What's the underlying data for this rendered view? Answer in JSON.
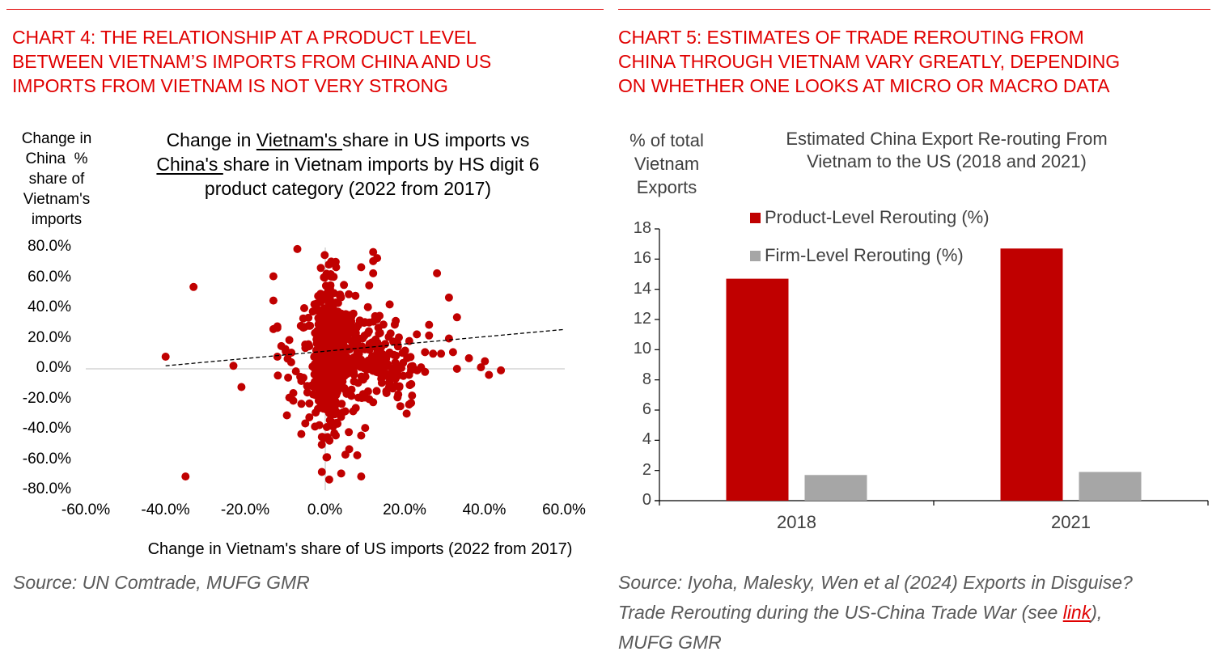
{
  "left_panel": {
    "heading_lines": [
      "CHART 4: THE RELATIONSHIP AT A PRODUCT LEVEL",
      "BETWEEN VIETNAM’S IMPORTS FROM CHINA AND US",
      "IMPORTS FROM VIETNAM IS NOT VERY STRONG"
    ],
    "source": "Source: UN Comtrade, MUFG GMR"
  },
  "right_panel": {
    "heading_lines": [
      "CHART 5: ESTIMATES OF TRADE REROUTING FROM",
      "CHINA THROUGH VIETNAM VARY GREATLY, DEPENDING",
      "ON WHETHER ONE LOOKS AT MICRO OR MACRO DATA"
    ],
    "source_lines": [
      "Source: Iyoha, Malesky, Wen et al (2024) Exports in Disguise?",
      "Trade Rerouting during the US-China Trade War (see ",
      "link",
      "),",
      "MUFG GMR"
    ]
  },
  "colors": {
    "accent_red": "#e00000",
    "series_red": "#c00000",
    "series_grey": "#a6a6a6",
    "trend": "#000000",
    "axis_grey": "#bfbfbf"
  },
  "chart_data": [
    {
      "type": "scatter",
      "title_parts": [
        "Change in ",
        "Vietnam's ",
        "share in US imports vs",
        "China's ",
        "share in Vietnam imports by HS digit 6",
        "product category (2022 from 2017)"
      ],
      "ylabel_lines": [
        "Change in",
        "China  %",
        "share of",
        "Vietnam's",
        "imports"
      ],
      "xlabel": "Change in Vietnam's share of US imports (2022 from 2017)",
      "xlim": [
        -0.6,
        0.6
      ],
      "ylim": [
        -0.8,
        0.8
      ],
      "x_ticks": [
        "-60.0%",
        "-40.0%",
        "-20.0%",
        "0.0%",
        "20.0%",
        "40.0%",
        "60.0%"
      ],
      "y_ticks": [
        "80.0%",
        "60.0%",
        "40.0%",
        "20.0%",
        "0.0%",
        "-20.0%",
        "-40.0%",
        "-60.0%",
        "-80.0%"
      ],
      "trendline": {
        "style": "dashed",
        "from": [
          -0.4,
          0.02
        ],
        "to": [
          0.6,
          0.26
        ]
      },
      "outliers": [
        [
          -0.4,
          0.08
        ],
        [
          -0.33,
          0.54
        ],
        [
          -0.35,
          -0.71
        ],
        [
          -0.23,
          0.02
        ],
        [
          -0.21,
          -0.12
        ],
        [
          -0.13,
          0.61
        ],
        [
          -0.13,
          0.45
        ],
        [
          -0.12,
          0.28
        ],
        [
          -0.12,
          0.27
        ],
        [
          -0.11,
          0.15
        ],
        [
          -0.12,
          0.08
        ],
        [
          -0.07,
          0.79
        ],
        [
          -0.09,
          0.19
        ],
        [
          -0.1,
          0.13
        ],
        [
          -0.09,
          -0.19
        ],
        [
          -0.08,
          -0.21
        ],
        [
          -0.06,
          -0.43
        ],
        [
          -0.05,
          -0.36
        ],
        [
          -0.06,
          -0.08
        ],
        [
          -0.08,
          -0.16
        ],
        [
          0.12,
          0.77
        ],
        [
          0.12,
          0.71
        ],
        [
          0.13,
          0.73
        ],
        [
          0.12,
          0.63
        ],
        [
          0.11,
          0.55
        ],
        [
          0.09,
          0.67
        ],
        [
          0.28,
          0.63
        ],
        [
          0.31,
          0.47
        ],
        [
          0.33,
          0.34
        ],
        [
          0.26,
          0.29
        ],
        [
          0.26,
          0.22
        ],
        [
          0.31,
          0.2
        ],
        [
          0.32,
          0.11
        ],
        [
          0.29,
          0.1
        ],
        [
          0.27,
          0.1
        ],
        [
          0.25,
          0.11
        ],
        [
          0.2,
          0.12
        ],
        [
          0.36,
          0.07
        ],
        [
          0.39,
          0.01
        ],
        [
          0.4,
          0.05
        ],
        [
          0.41,
          -0.04
        ],
        [
          0.44,
          -0.01
        ],
        [
          0.33,
          0.0
        ],
        [
          0.25,
          -0.02
        ],
        [
          0.24,
          0.01
        ],
        [
          0.23,
          -0.01
        ],
        [
          0.21,
          -0.04
        ],
        [
          0.19,
          0.02
        ],
        [
          0.09,
          -0.71
        ],
        [
          0.04,
          -0.69
        ],
        [
          0.01,
          -0.73
        ],
        [
          0.08,
          -0.57
        ],
        [
          0.06,
          -0.53
        ],
        [
          0.09,
          -0.44
        ],
        [
          0.1,
          -0.39
        ],
        [
          0.07,
          -0.28
        ],
        [
          0.05,
          -0.28
        ],
        [
          -0.04,
          -0.32
        ],
        [
          0.16,
          -0.12
        ],
        [
          0.16,
          -0.09
        ],
        [
          0.18,
          -0.05
        ],
        [
          0.11,
          -0.2
        ],
        [
          0.12,
          -0.22
        ]
      ],
      "cluster": {
        "center": [
          0.02,
          0.1
        ],
        "note": "dense cluster of ~700 product points, mostly within x -0.10..0.20, y -0.70..0.80"
      }
    },
    {
      "type": "bar",
      "title_lines": [
        "Estimated China Export Re-routing From",
        "Vietnam to the US (2018 and 2021)"
      ],
      "ylabel_lines": [
        "% of total",
        "Vietnam",
        "Exports"
      ],
      "categories": [
        "2018",
        "2021"
      ],
      "series": [
        {
          "name": "Product-Level Rerouting (%)",
          "values": [
            14.7,
            16.7
          ],
          "color": "#c00000"
        },
        {
          "name": "Firm-Level Rerouting (%)",
          "values": [
            1.7,
            1.9
          ],
          "color": "#a6a6a6"
        }
      ],
      "y_ticks": [
        "18",
        "16",
        "14",
        "12",
        "10",
        "8",
        "6",
        "4",
        "2",
        "0"
      ],
      "ylim": [
        0,
        18
      ],
      "legend": "top-left-inside",
      "grid": false
    }
  ]
}
